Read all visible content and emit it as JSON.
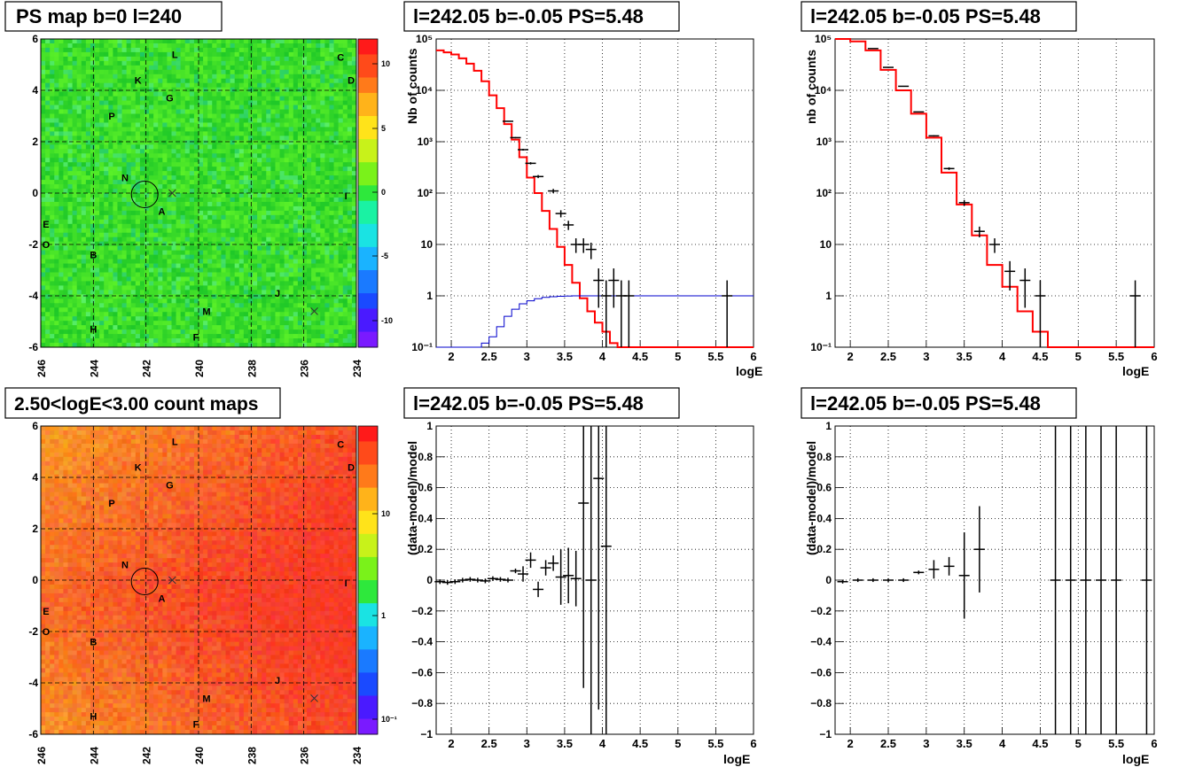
{
  "panels": {
    "ps_map": {
      "title": "PS map b=0 l=240",
      "x_ticks": [
        "246",
        "244",
        "242",
        "240",
        "238",
        "236",
        "234"
      ],
      "y_ticks": [
        "6",
        "4",
        "2",
        "0",
        "-2",
        "-4",
        "-6"
      ],
      "colorbar_ticks": [
        "10",
        "5",
        "0",
        "-5",
        "-10"
      ],
      "colors": {
        "background": "#2ee83c",
        "high": "#ff1a1a",
        "low": "#6a1aff"
      }
    },
    "count_map": {
      "title": "2.50<logE<3.00 count maps",
      "x_ticks": [
        "246",
        "244",
        "242",
        "240",
        "238",
        "236",
        "234"
      ],
      "y_ticks": [
        "6",
        "4",
        "2",
        "0",
        "-2",
        "-4",
        "-6"
      ],
      "colorbar_ticks": [
        "10",
        "1",
        "10⁻¹"
      ],
      "colors": {
        "background": "#f2a33a",
        "high": "#ff2a1a"
      }
    },
    "source_labels": [
      "L",
      "C",
      "K",
      "D",
      "G",
      "P",
      "N",
      "I",
      "A",
      "E",
      "O",
      "B",
      "J",
      "M",
      "H",
      "F"
    ],
    "spectrum_a": {
      "title": "l=242.05 b=-0.05 PS=5.48",
      "xlabel": "logE",
      "ylabel": "Nb of counts",
      "x_ticks": [
        "2",
        "2.5",
        "3",
        "3.5",
        "4",
        "4.5",
        "5",
        "5.5",
        "6"
      ],
      "y_ticks": [
        "10⁵",
        "10⁴",
        "10³",
        "10²",
        "10",
        "1",
        "10⁻¹"
      ]
    },
    "spectrum_b": {
      "title": "l=242.05 b=-0.05 PS=5.48",
      "xlabel": "logE",
      "ylabel": "nb of counts",
      "x_ticks": [
        "2",
        "2.5",
        "3",
        "3.5",
        "4",
        "4.5",
        "5",
        "5.5",
        "6"
      ],
      "y_ticks": [
        "10⁵",
        "10⁴",
        "10³",
        "10²",
        "10",
        "1",
        "10⁻¹"
      ]
    },
    "resid_a": {
      "title": "l=242.05 b=-0.05 PS=5.48",
      "xlabel": "logE",
      "ylabel": "(data-model)/model",
      "x_ticks": [
        "2",
        "2.5",
        "3",
        "3.5",
        "4",
        "4.5",
        "5",
        "5.5",
        "6"
      ],
      "y_ticks": [
        "1",
        "0.8",
        "0.6",
        "0.4",
        "0.2",
        "0",
        "−0.2",
        "−0.4",
        "−0.6",
        "−0.8",
        "−1"
      ]
    },
    "resid_b": {
      "title": "l=242.05 b=-0.05 PS=5.48",
      "xlabel": "logE",
      "ylabel": "(data-model)/model",
      "x_ticks": [
        "2",
        "2.5",
        "3",
        "3.5",
        "4",
        "4.5",
        "5",
        "5.5",
        "6"
      ],
      "y_ticks": [
        "1",
        "0.8",
        "0.6",
        "0.4",
        "0.2",
        "0",
        "−0.2",
        "−0.4",
        "−0.6",
        "−0.8",
        "−1"
      ]
    }
  },
  "chart_data": [
    {
      "type": "heatmap",
      "title": "PS map b=0 l=240",
      "xlim": [
        246,
        234
      ],
      "ylim": [
        -6,
        6
      ],
      "zlim": [
        -12,
        12
      ],
      "sources": [
        {
          "label": "L",
          "l": 240.9,
          "b": 5.4
        },
        {
          "label": "C",
          "l": 234.6,
          "b": 5.3
        },
        {
          "label": "K",
          "l": 242.3,
          "b": 4.4
        },
        {
          "label": "D",
          "l": 234.2,
          "b": 4.4
        },
        {
          "label": "G",
          "l": 241.1,
          "b": 3.7
        },
        {
          "label": "P",
          "l": 243.3,
          "b": 3.0
        },
        {
          "label": "N",
          "l": 242.8,
          "b": 0.6
        },
        {
          "label": "I",
          "l": 234.4,
          "b": -0.1
        },
        {
          "label": "A",
          "l": 241.4,
          "b": -0.7
        },
        {
          "label": "E",
          "l": 245.8,
          "b": -1.2
        },
        {
          "label": "O",
          "l": 245.8,
          "b": -2.0
        },
        {
          "label": "B",
          "l": 244.0,
          "b": -2.4
        },
        {
          "label": "J",
          "l": 237.0,
          "b": -3.9
        },
        {
          "label": "M",
          "l": 239.7,
          "b": -4.6
        },
        {
          "label": "H",
          "l": 244.0,
          "b": -5.3
        },
        {
          "label": "F",
          "l": 240.1,
          "b": -5.6
        }
      ],
      "marker_circle": {
        "l": 242.05,
        "b": -0.05
      },
      "crosses": [
        {
          "l": 241.0,
          "b": 0.0
        },
        {
          "l": 235.6,
          "b": -4.6
        }
      ]
    },
    {
      "type": "heatmap",
      "title": "2.50<logE<3.00 count maps",
      "xlim": [
        246,
        234
      ],
      "ylim": [
        -6,
        6
      ],
      "zscale": "log",
      "zlim": [
        0.05,
        50
      ]
    },
    {
      "type": "line",
      "title": "l=242.05 b=-0.05 PS=5.48",
      "xlabel": "logE",
      "ylabel": "Nb of counts",
      "xlim": [
        1.8,
        6
      ],
      "ylim": [
        0.1,
        100000
      ],
      "yscale": "log",
      "series": [
        {
          "color": "#ff0000",
          "step": true,
          "x": [
            1.8,
            1.9,
            2.0,
            2.1,
            2.2,
            2.3,
            2.4,
            2.5,
            2.6,
            2.7,
            2.8,
            2.9,
            3.0,
            3.1,
            3.2,
            3.3,
            3.4,
            3.5,
            3.6,
            3.7,
            3.8,
            3.9,
            4.0,
            4.1,
            4.2,
            4.3,
            4.4,
            4.5,
            5.0,
            6.0
          ],
          "y": [
            60000,
            55000,
            50000,
            42000,
            33000,
            24000,
            15000,
            8000,
            4500,
            2200,
            1100,
            500,
            200,
            100,
            45,
            20,
            9,
            4,
            1.8,
            0.9,
            0.5,
            0.3,
            0.2,
            0.12,
            0.1,
            0.1,
            0.1,
            0.1,
            0.1,
            0.1
          ]
        },
        {
          "color": "#0000cc",
          "step": true,
          "x": [
            1.8,
            2.3,
            2.4,
            2.5,
            2.6,
            2.7,
            2.8,
            2.9,
            3.0,
            3.1,
            3.2,
            3.3,
            3.4,
            3.5,
            3.6,
            4.0,
            5.0,
            6.0
          ],
          "y": [
            0.1,
            0.1,
            0.12,
            0.16,
            0.25,
            0.4,
            0.55,
            0.7,
            0.8,
            0.88,
            0.93,
            0.96,
            0.98,
            0.99,
            1.0,
            1.0,
            1.0,
            1.0
          ]
        }
      ],
      "points": {
        "x": [
          2.75,
          2.85,
          2.95,
          3.05,
          3.15,
          3.35,
          3.45,
          3.55,
          3.65,
          3.75,
          3.85,
          3.95,
          4.05,
          4.15,
          4.25,
          4.35,
          5.65
        ],
        "y": [
          2500,
          1200,
          700,
          380,
          210,
          110,
          40,
          24,
          10,
          10,
          8,
          2,
          1,
          2,
          1,
          1,
          1
        ]
      }
    },
    {
      "type": "line",
      "title": "l=242.05 b=-0.05 PS=5.48",
      "xlabel": "logE",
      "ylabel": "nb of counts",
      "xlim": [
        1.8,
        6
      ],
      "ylim": [
        0.1,
        100000
      ],
      "yscale": "log",
      "series": [
        {
          "color": "#ff0000",
          "step": true,
          "x": [
            1.8,
            2.0,
            2.2,
            2.4,
            2.6,
            2.8,
            3.0,
            3.2,
            3.4,
            3.6,
            3.8,
            4.0,
            4.2,
            4.4,
            4.6,
            5.0,
            6.0
          ],
          "y": [
            100000,
            90000,
            60000,
            25000,
            10000,
            3500,
            1200,
            250,
            60,
            15,
            4,
            1.5,
            0.5,
            0.2,
            0.1,
            0.1,
            0.1
          ]
        }
      ],
      "points": {
        "x": [
          2.3,
          2.5,
          2.7,
          2.9,
          3.1,
          3.3,
          3.5,
          3.7,
          3.9,
          4.1,
          4.3,
          4.5,
          5.75
        ],
        "y": [
          65000,
          28000,
          12000,
          3800,
          1300,
          300,
          65,
          18,
          10,
          3,
          2,
          1,
          1
        ]
      }
    },
    {
      "type": "scatter",
      "title": "l=242.05 b=-0.05 PS=5.48",
      "xlabel": "logE",
      "ylabel": "(data-model)/model",
      "xlim": [
        1.8,
        6
      ],
      "ylim": [
        -1,
        1
      ],
      "points": {
        "x": [
          1.85,
          1.95,
          2.05,
          2.15,
          2.25,
          2.35,
          2.45,
          2.55,
          2.65,
          2.75,
          2.85,
          2.95,
          3.05,
          3.15,
          3.25,
          3.35,
          3.45,
          3.55,
          3.65,
          3.75,
          3.85,
          3.95,
          4.05
        ],
        "y": [
          -0.01,
          -0.015,
          -0.01,
          0.0,
          0.005,
          0.0,
          -0.005,
          0.01,
          0.005,
          0.0,
          0.06,
          0.04,
          0.13,
          -0.06,
          0.08,
          0.11,
          0.02,
          0.03,
          0.01,
          0.5,
          0.0,
          0.66,
          0.22
        ]
      }
    },
    {
      "type": "scatter",
      "title": "l=242.05 b=-0.05 PS=5.48",
      "xlabel": "logE",
      "ylabel": "(data-model)/model",
      "xlim": [
        1.8,
        6
      ],
      "ylim": [
        -1,
        1
      ],
      "points": {
        "x": [
          1.9,
          2.1,
          2.3,
          2.5,
          2.7,
          2.9,
          3.1,
          3.3,
          3.5,
          3.7,
          4.7,
          4.9,
          5.1,
          5.3,
          5.5,
          5.9
        ],
        "y": [
          -0.01,
          0.0,
          0.0,
          0.0,
          0.0,
          0.05,
          0.07,
          0.09,
          0.03,
          0.2,
          0,
          0,
          0,
          0,
          0,
          0
        ]
      }
    }
  ]
}
